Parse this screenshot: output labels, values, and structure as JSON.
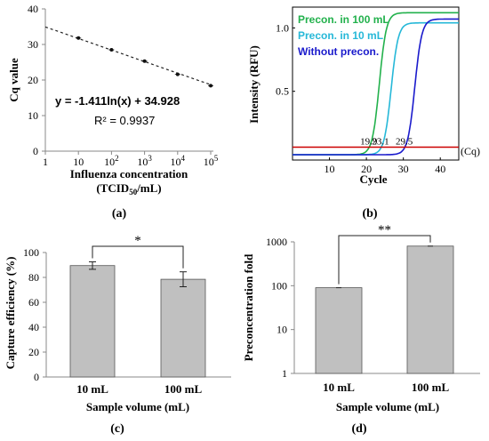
{
  "chart_data": [
    {
      "panel": "(a)",
      "type": "scatter",
      "xscale": "log",
      "x_ticks": [
        "1",
        "10",
        "10^2",
        "10^3",
        "10^4",
        "10^5"
      ],
      "y_ticks": [
        "0",
        "10",
        "20",
        "30",
        "40"
      ],
      "ylim": [
        0,
        40
      ],
      "xlabel_line1": "Influenza concentration",
      "xlabel_line2": "(TCID50/mL)",
      "ylabel": "Cq value",
      "points": [
        {
          "x": 10,
          "y": 31.8
        },
        {
          "x": 100,
          "y": 28.5
        },
        {
          "x": 1000,
          "y": 25.3
        },
        {
          "x": 10000,
          "y": 21.6
        },
        {
          "x": 100000,
          "y": 18.4
        }
      ],
      "fit": {
        "slope": -1.411,
        "intercept": 34.928
      },
      "equation": "y = -1.411ln(x) + 34.928",
      "r2": "R² = 0.9937"
    },
    {
      "panel": "(b)",
      "type": "line",
      "xlim": [
        0,
        45
      ],
      "ylim": [
        0,
        1.15
      ],
      "x_ticks": [
        10,
        20,
        30,
        40
      ],
      "y_ticks": [
        "0.5",
        "1.0"
      ],
      "xlabel": "Cycle",
      "ylabel": "Intensity (RFU)",
      "threshold": 0.06,
      "threshold_label": "(Cq)",
      "series": [
        {
          "name": "Precon. in 100 mL",
          "color": "#22b14c",
          "cq": 19.9,
          "cq_label": "19.9",
          "plateau": 1.12
        },
        {
          "name": "Precon. in 10 mL",
          "color": "#26b8d8",
          "cq": 23.1,
          "cq_label": "23.1",
          "plateau": 1.04
        },
        {
          "name": "Without precon.",
          "color": "#1a1acc",
          "cq": 29.5,
          "cq_label": "29.5",
          "plateau": 1.07
        }
      ]
    },
    {
      "panel": "(c)",
      "type": "bar",
      "categories": [
        "10 mL",
        "100 mL"
      ],
      "values": [
        89.5,
        78.5
      ],
      "errors": [
        3,
        6
      ],
      "ylim": [
        0,
        100
      ],
      "y_ticks": [
        "0",
        "20",
        "40",
        "60",
        "80",
        "100"
      ],
      "xlabel": "Sample volume (mL)",
      "ylabel": "Capture efficiency (%)",
      "significance": "*"
    },
    {
      "panel": "(d)",
      "type": "bar",
      "yscale": "log",
      "categories": [
        "10 mL",
        "100 mL"
      ],
      "values": [
        90,
        800
      ],
      "ylim": [
        1,
        1000
      ],
      "y_ticks": [
        "1",
        "10",
        "100",
        "1000"
      ],
      "xlabel": "Sample volume (mL)",
      "ylabel": "Preconcentration fold",
      "significance": "**"
    }
  ]
}
